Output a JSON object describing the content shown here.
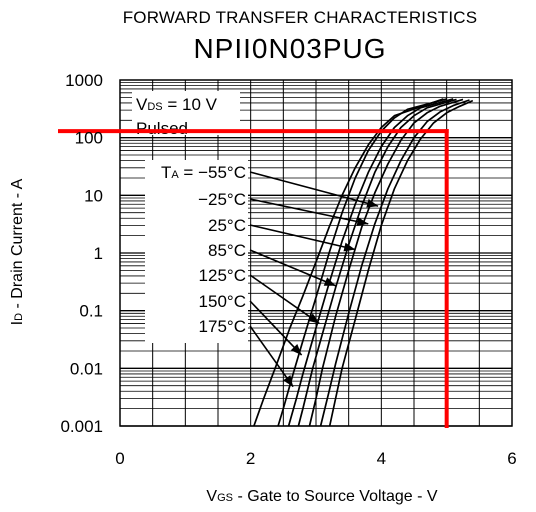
{
  "chart_data": {
    "type": "line",
    "title": "FORWARD TRANSFER CHARACTERISTICS",
    "subtitle": "NPII0N03PUG",
    "xlabel": {
      "sym": "V",
      "sub": "GS",
      "rest": " - Gate to Source Voltage - V"
    },
    "ylabel": {
      "sym": "I",
      "sub": "D",
      "rest": " - Drain Current - A"
    },
    "xlim": [
      0,
      6
    ],
    "ylim": [
      0.001,
      1000
    ],
    "yscale": "log",
    "grid": true,
    "xticks": [
      "0",
      "2",
      "4",
      "6"
    ],
    "yticks": [
      {
        "v": 1000,
        "label": "1000"
      },
      {
        "v": 100,
        "label": "100"
      },
      {
        "v": 10,
        "label": "10"
      },
      {
        "v": 1,
        "label": "1"
      },
      {
        "v": 0.1,
        "label": "0.1"
      },
      {
        "v": 0.01,
        "label": "0.01"
      },
      {
        "v": 0.001,
        "label": "0.001"
      }
    ],
    "conditions": [
      {
        "sym": "V",
        "sub": "DS",
        "rest": " = 10 V"
      },
      {
        "text": "Pulsed"
      }
    ],
    "temp_prefix": {
      "sym": "T",
      "sub": "A",
      "rest": " = "
    },
    "series": [
      {
        "name": "−55°C",
        "x": [
          3.21,
          3.3,
          3.4,
          3.6,
          3.8,
          4.0,
          4.2,
          4.4,
          4.6,
          4.8,
          5.0,
          5.2,
          5.4
        ],
        "y": [
          0.001,
          0.003,
          0.01,
          0.07,
          0.5,
          3.0,
          13,
          40,
          95,
          180,
          270,
          350,
          440
        ]
      },
      {
        "name": "−25°C",
        "x": [
          3.07,
          3.2,
          3.3,
          3.5,
          3.7,
          3.9,
          4.1,
          4.3,
          4.5,
          4.7,
          4.9,
          5.1,
          5.35
        ],
        "y": [
          0.001,
          0.004,
          0.012,
          0.09,
          0.6,
          3.2,
          13,
          40,
          100,
          190,
          280,
          360,
          450
        ]
      },
      {
        "name": "25°C",
        "x": [
          2.9,
          3.0,
          3.1,
          3.3,
          3.5,
          3.7,
          3.9,
          4.1,
          4.3,
          4.5,
          4.7,
          4.9,
          5.25
        ],
        "y": [
          0.001,
          0.003,
          0.01,
          0.08,
          0.5,
          2.8,
          11,
          35,
          90,
          180,
          270,
          350,
          460
        ]
      },
      {
        "name": "85°C",
        "x": [
          2.73,
          2.8,
          2.95,
          3.1,
          3.3,
          3.5,
          3.7,
          3.9,
          4.1,
          4.3,
          4.5,
          4.7,
          5.15
        ],
        "y": [
          0.001,
          0.002,
          0.01,
          0.04,
          0.25,
          1.4,
          6.5,
          25,
          70,
          150,
          240,
          330,
          460
        ]
      },
      {
        "name": "125°C",
        "x": [
          2.58,
          2.7,
          2.8,
          3.0,
          3.2,
          3.4,
          3.6,
          3.8,
          4.0,
          4.2,
          4.4,
          4.6,
          5.1
        ],
        "y": [
          0.001,
          0.003,
          0.008,
          0.05,
          0.3,
          1.6,
          7,
          25,
          70,
          150,
          240,
          330,
          470
        ]
      },
      {
        "name": "150°C",
        "x": [
          2.42,
          2.5,
          2.65,
          2.8,
          3.0,
          3.2,
          3.4,
          3.6,
          3.8,
          4.0,
          4.2,
          4.4,
          5.0
        ],
        "y": [
          0.001,
          0.002,
          0.008,
          0.03,
          0.17,
          1.0,
          5,
          20,
          60,
          130,
          220,
          310,
          470
        ]
      },
      {
        "name": "175°C",
        "x": [
          2.05,
          2.2,
          2.4,
          2.6,
          2.8,
          3.0,
          3.2,
          3.4,
          3.6,
          3.8,
          4.0,
          4.2,
          4.95
        ],
        "y": [
          0.001,
          0.003,
          0.012,
          0.05,
          0.18,
          0.7,
          2.8,
          10,
          30,
          75,
          150,
          240,
          470
        ]
      }
    ],
    "annotations": {
      "hline": {
        "y": 130,
        "color": "#ff0000"
      },
      "vline": {
        "x": 5,
        "color": "#ff0000"
      }
    }
  }
}
